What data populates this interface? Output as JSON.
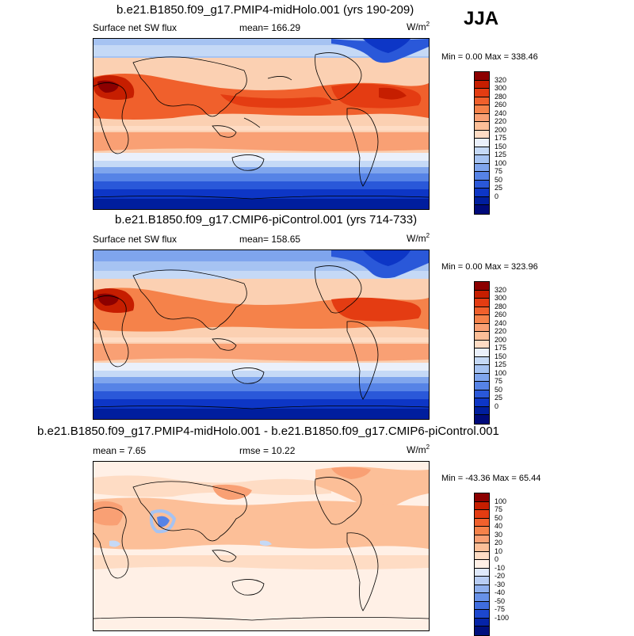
{
  "season": "JJA",
  "panels": [
    {
      "title": "b.e21.B1850.f09_g17.PMIP4-midHolo.001 (yrs 190-209)",
      "left_label": "Surface net SW flux",
      "center_label": "mean= 166.29",
      "units_base": "W/m",
      "units_exp": "2",
      "minmax": "Min =   0.00 Max = 338.46",
      "colorbar": {
        "colors": [
          "#8c0000",
          "#c61e00",
          "#e43c12",
          "#f0602c",
          "#f5824a",
          "#f9a074",
          "#fcbf98",
          "#fedcc4",
          "#eaf0fb",
          "#c5d9f6",
          "#a6c3f2",
          "#7fa5ed",
          "#5683e6",
          "#2a58d9",
          "#0d36c6",
          "#001e9e",
          "#000a7a"
        ],
        "labels": [
          "320",
          "300",
          "280",
          "260",
          "240",
          "220",
          "200",
          "175",
          "150",
          "125",
          "100",
          "75",
          "50",
          "25",
          "0"
        ]
      }
    },
    {
      "title": "b.e21.B1850.f09_g17.CMIP6-piControl.001 (yrs 714-733)",
      "left_label": "Surface net SW flux",
      "center_label": "mean= 158.65",
      "units_base": "W/m",
      "units_exp": "2",
      "minmax": "Min =   0.00 Max = 323.96",
      "colorbar": {
        "colors": [
          "#8c0000",
          "#c61e00",
          "#e43c12",
          "#f0602c",
          "#f5824a",
          "#f9a074",
          "#fcbf98",
          "#fedcc4",
          "#eaf0fb",
          "#c5d9f6",
          "#a6c3f2",
          "#7fa5ed",
          "#5683e6",
          "#2a58d9",
          "#0d36c6",
          "#001e9e",
          "#000a7a"
        ],
        "labels": [
          "320",
          "300",
          "280",
          "260",
          "240",
          "220",
          "200",
          "175",
          "150",
          "125",
          "100",
          "75",
          "50",
          "25",
          "0"
        ]
      }
    },
    {
      "title": "b.e21.B1850.f09_g17.PMIP4-midHolo.001 - b.e21.B1850.f09_g17.CMIP6-piControl.001",
      "left_label": "mean =   7.65",
      "center_label": "rmse =  10.22",
      "units_base": "W/m",
      "units_exp": "2",
      "minmax": "Min = -43.36 Max =  65.44",
      "colorbar": {
        "colors": [
          "#8c0000",
          "#c61e00",
          "#e43c12",
          "#f0602c",
          "#f5824a",
          "#f9a074",
          "#fcbf98",
          "#fedcc4",
          "#fff0e6",
          "#dfe9fb",
          "#b8cdf4",
          "#8fb0ee",
          "#6791e8",
          "#3f6ddf",
          "#1c47cf",
          "#0524a8",
          "#00107e"
        ],
        "labels": [
          "100",
          "75",
          "50",
          "40",
          "30",
          "20",
          "10",
          "0",
          "-10",
          "-20",
          "-30",
          "-40",
          "-50",
          "-75",
          "-100"
        ]
      }
    }
  ]
}
